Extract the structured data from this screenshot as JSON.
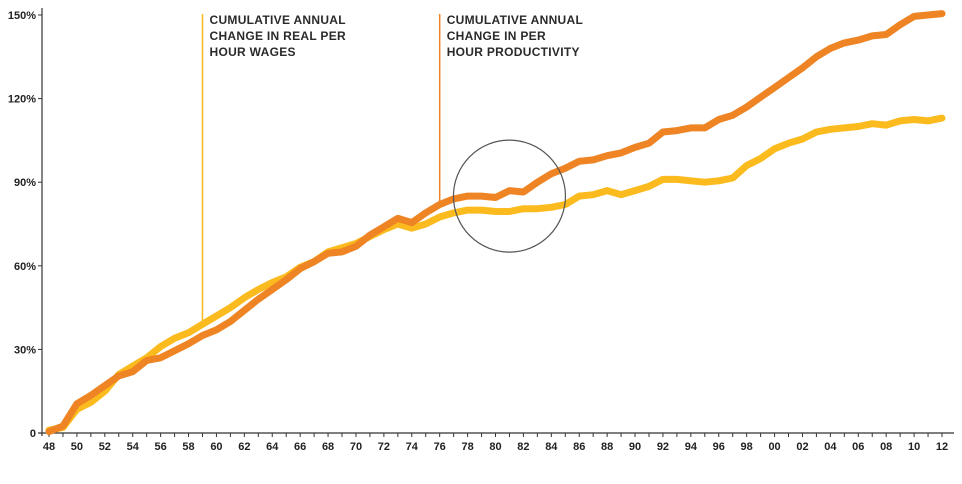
{
  "chart_data": {
    "type": "line",
    "title": "",
    "xlabel": "",
    "ylabel": "",
    "x_tick_labels": [
      "48",
      "50",
      "52",
      "54",
      "56",
      "58",
      "60",
      "62",
      "64",
      "66",
      "68",
      "70",
      "72",
      "74",
      "76",
      "78",
      "80",
      "82",
      "84",
      "86",
      "88",
      "90",
      "92",
      "94",
      "96",
      "98",
      "00",
      "02",
      "04",
      "06",
      "08",
      "10",
      "12"
    ],
    "y_tick_labels": [
      "0",
      "30%",
      "60%",
      "90%",
      "120%",
      "150%"
    ],
    "y_tick_values": [
      0,
      30,
      60,
      90,
      120,
      150
    ],
    "ylim": [
      0,
      150
    ],
    "xlim": [
      1948,
      2012
    ],
    "grid": false,
    "colors": {
      "productivity": "#EE8424",
      "wages": "#FBBB1E",
      "axis": "#333333",
      "annotation_wages": "#FBBB1E",
      "annotation_productivity": "#EE8424",
      "circle": "#555555"
    },
    "annotations": [
      {
        "id": "wages",
        "x": 1959,
        "lines": [
          "CUMULATIVE ANNUAL",
          "CHANGE IN REAL PER",
          "HOUR WAGES"
        ]
      },
      {
        "id": "productivity",
        "x": 1976,
        "lines": [
          "CUMULATIVE ANNUAL",
          "CHANGE IN PER",
          "HOUR PRODUCTIVITY"
        ]
      }
    ],
    "highlight_circle": {
      "x": 1981,
      "y": 85
    },
    "series": [
      {
        "key": "productivity",
        "x": [
          1948,
          1949,
          1950,
          1951,
          1952,
          1953,
          1954,
          1955,
          1956,
          1957,
          1958,
          1959,
          1960,
          1961,
          1962,
          1963,
          1964,
          1965,
          1966,
          1967,
          1968,
          1969,
          1970,
          1971,
          1972,
          1973,
          1974,
          1975,
          1976,
          1977,
          1978,
          1979,
          1980,
          1981,
          1982,
          1983,
          1984,
          1985,
          1986,
          1987,
          1988,
          1989,
          1990,
          1991,
          1992,
          1993,
          1994,
          1995,
          1996,
          1997,
          1998,
          1999,
          2000,
          2001,
          2002,
          2003,
          2004,
          2005,
          2006,
          2007,
          2008,
          2009,
          2010,
          2011,
          2012
        ],
        "values": [
          0.5,
          2.5,
          10.5,
          13.5,
          17,
          20.5,
          22,
          26,
          27,
          29.5,
          32,
          35,
          37,
          40,
          44,
          48,
          51.5,
          55,
          59,
          61.5,
          64.5,
          65,
          67,
          71,
          74,
          77,
          75.5,
          79,
          82,
          84,
          85,
          85,
          84.5,
          87,
          86.5,
          90,
          93,
          95,
          97.5,
          98,
          99.5,
          100.5,
          102.5,
          104,
          108,
          108.5,
          109.5,
          109.5,
          112.5,
          114,
          117,
          120.5,
          124,
          127.5,
          131,
          135,
          138,
          140,
          141,
          142.5,
          143,
          146.5,
          149.5,
          150,
          150.5
        ]
      },
      {
        "key": "wages",
        "x": [
          1948,
          1949,
          1950,
          1951,
          1952,
          1953,
          1954,
          1955,
          1956,
          1957,
          1958,
          1959,
          1960,
          1961,
          1962,
          1963,
          1964,
          1965,
          1966,
          1967,
          1968,
          1969,
          1970,
          1971,
          1972,
          1973,
          1974,
          1975,
          1976,
          1977,
          1978,
          1979,
          1980,
          1981,
          1982,
          1983,
          1984,
          1985,
          1986,
          1987,
          1988,
          1989,
          1990,
          1991,
          1992,
          1993,
          1994,
          1995,
          1996,
          1997,
          1998,
          1999,
          2000,
          2001,
          2002,
          2003,
          2004,
          2005,
          2006,
          2007,
          2008,
          2009,
          2010,
          2011,
          2012
        ],
        "values": [
          1,
          2,
          8.5,
          11,
          15,
          21,
          24,
          27,
          31,
          34,
          36,
          39,
          42,
          45,
          48.5,
          51.5,
          54,
          56,
          59.5,
          61.5,
          65,
          66.5,
          68,
          70.5,
          73,
          75,
          73.5,
          75,
          77.5,
          79,
          80,
          80,
          79.5,
          79.5,
          80.5,
          80.5,
          81,
          82,
          85,
          85.5,
          87,
          85.5,
          87,
          88.5,
          91,
          91,
          90.5,
          90,
          90.5,
          91.5,
          96,
          98.5,
          102,
          104,
          105.5,
          108,
          109,
          109.5,
          110,
          111,
          110.5,
          112,
          112.5,
          112,
          113
        ]
      }
    ]
  }
}
